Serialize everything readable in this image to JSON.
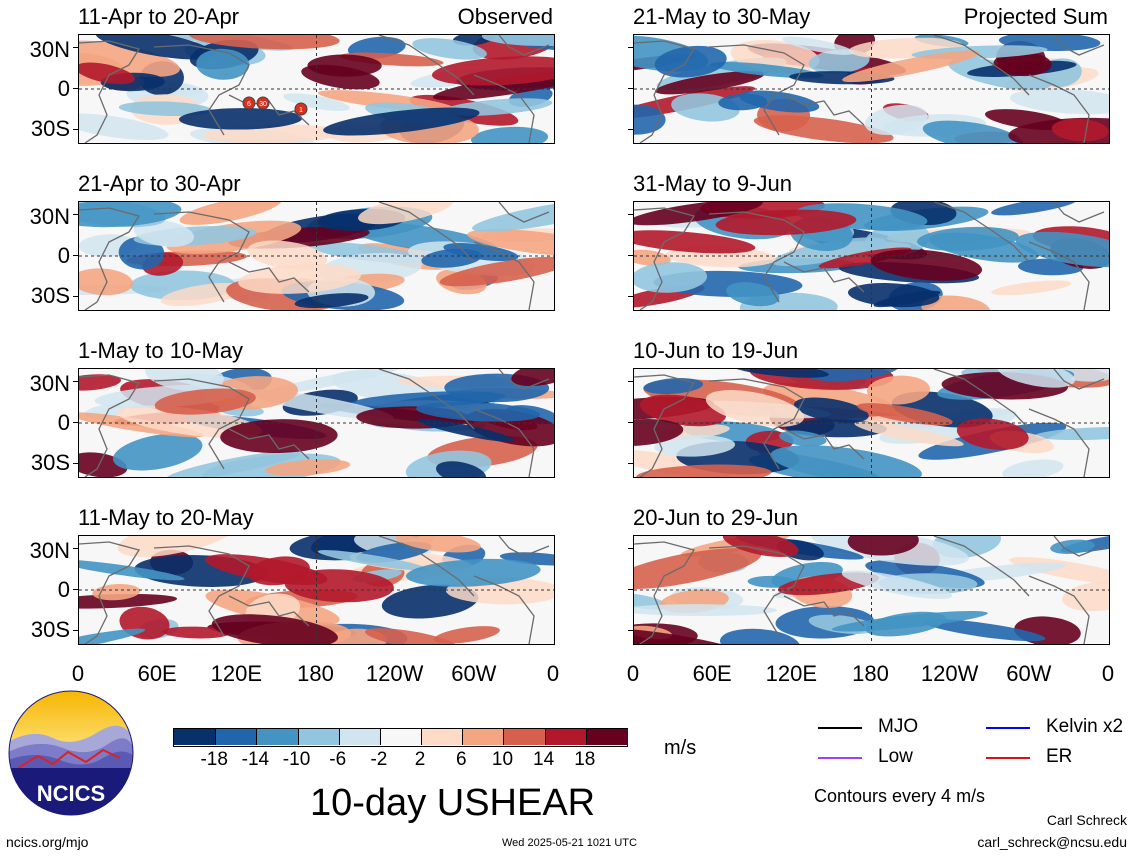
{
  "panels": [
    {
      "title": "11-Apr to 20-Apr",
      "tag": "Observed",
      "tc": true
    },
    {
      "title": "21-Apr to 30-Apr",
      "tag": ""
    },
    {
      "title": "1-May to 10-May",
      "tag": ""
    },
    {
      "title": "11-May to 20-May",
      "tag": ""
    },
    {
      "title": "21-May to 30-May",
      "tag": "Projected Sum"
    },
    {
      "title": "31-May to 9-Jun",
      "tag": ""
    },
    {
      "title": "10-Jun to 19-Jun",
      "tag": ""
    },
    {
      "title": "20-Jun to 29-Jun",
      "tag": ""
    }
  ],
  "y_ticks": [
    "30N",
    "0",
    "30S"
  ],
  "x_ticks": [
    "0",
    "60E",
    "120E",
    "180",
    "120W",
    "60W",
    "0"
  ],
  "storm_markers": [
    "6",
    "30",
    "1"
  ],
  "colorbar": {
    "labels": [
      "-18",
      "-14",
      "-10",
      "-6",
      "-2",
      "2",
      "6",
      "10",
      "14",
      "18"
    ],
    "units": "m/s",
    "colors": [
      "#08306b",
      "#2166ac",
      "#4393c3",
      "#92c5de",
      "#d1e5f0",
      "#f7f7f7",
      "#fddbc7",
      "#f4a582",
      "#d6604d",
      "#b2182b",
      "#67001f"
    ]
  },
  "legend": [
    {
      "label": "MJO",
      "color": "#000000"
    },
    {
      "label": "Kelvin x2",
      "color": "#0000ff"
    },
    {
      "label": "Low",
      "color": "#a040ff"
    },
    {
      "label": "ER",
      "color": "#e01010"
    }
  ],
  "contour_note": "Contours every 4 m/s",
  "main_title": "10-day USHEAR",
  "logo_text": "NCICS",
  "url": "ncics.org/mjo",
  "timestamp": "Wed 2025-05-21 1021 UTC",
  "author": "Carl Schreck",
  "email": "carl_schreck@ncsu.edu"
}
